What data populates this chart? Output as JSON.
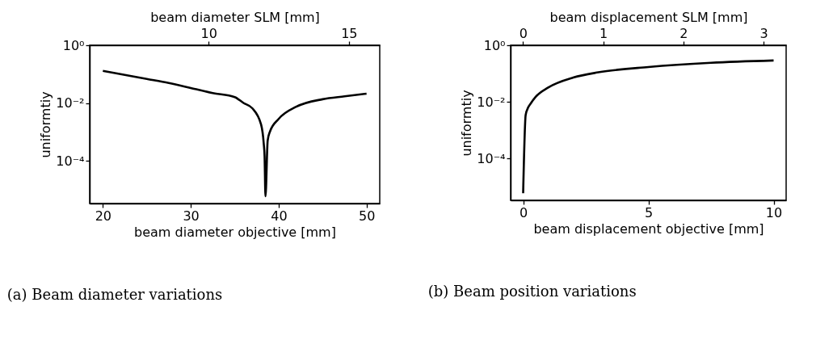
{
  "chart_data": [
    {
      "type": "line",
      "xlabel": "beam diameter objective [mm]",
      "ylabel": "uniformtiy",
      "x2label": "beam diameter SLM [mm]",
      "log": "y",
      "grid": false,
      "xlim": [
        18.5,
        51.5
      ],
      "xticks": [
        20,
        30,
        40,
        50
      ],
      "x2lim": [
        5.76,
        16.1
      ],
      "x2ticks": [
        10,
        15
      ],
      "ylim": [
        3.3e-06,
        1
      ],
      "yticks": [
        {
          "value": 1,
          "label": "10⁰"
        },
        {
          "value": 0.01,
          "label": "10⁻²"
        },
        {
          "value": 0.0001,
          "label": "10⁻⁴"
        }
      ],
      "series": [
        {
          "color": "#000000",
          "x": [
            20,
            22.5,
            25,
            27.5,
            30,
            32.5,
            35,
            36,
            37,
            38,
            38.3,
            38.4,
            38.5,
            38.75,
            39,
            40,
            42,
            45,
            47.5,
            50
          ],
          "values": [
            0.13,
            0.094,
            0.068,
            0.049,
            0.033,
            0.022,
            0.016,
            0.01,
            0.0066,
            0.0018,
            0.0004,
            0.00014,
            5.9e-06,
            0.0005,
            0.001,
            0.0028,
            0.0074,
            0.0135,
            0.017,
            0.021
          ]
        }
      ],
      "annotations": [
        "(a) Beam diameter variations"
      ]
    },
    {
      "type": "line",
      "xlabel": "beam displacement objective [mm]",
      "ylabel": "uniformtiy",
      "x2label": "beam displacement SLM [mm]",
      "log": "y",
      "grid": false,
      "xlim": [
        -0.5,
        10.5
      ],
      "xticks": [
        0,
        5,
        10
      ],
      "x2lim": [
        -0.155,
        3.28
      ],
      "x2ticks": [
        0,
        1,
        2,
        3
      ],
      "ylim": [
        3.3e-06,
        1
      ],
      "yticks": [
        {
          "value": 1,
          "label": "10⁰"
        },
        {
          "value": 0.01,
          "label": "10⁻²"
        },
        {
          "value": 0.0001,
          "label": "10⁻⁴"
        }
      ],
      "series": [
        {
          "color": "#000000",
          "x": [
            0,
            0.1,
            0.2,
            0.3,
            0.5,
            1,
            2,
            3,
            5,
            7.5,
            10
          ],
          "values": [
            5.9e-06,
            0.0034,
            0.0063,
            0.0087,
            0.015,
            0.032,
            0.072,
            0.11,
            0.17,
            0.24,
            0.29
          ]
        }
      ],
      "annotations": [
        "(b) Beam position variations"
      ]
    }
  ]
}
